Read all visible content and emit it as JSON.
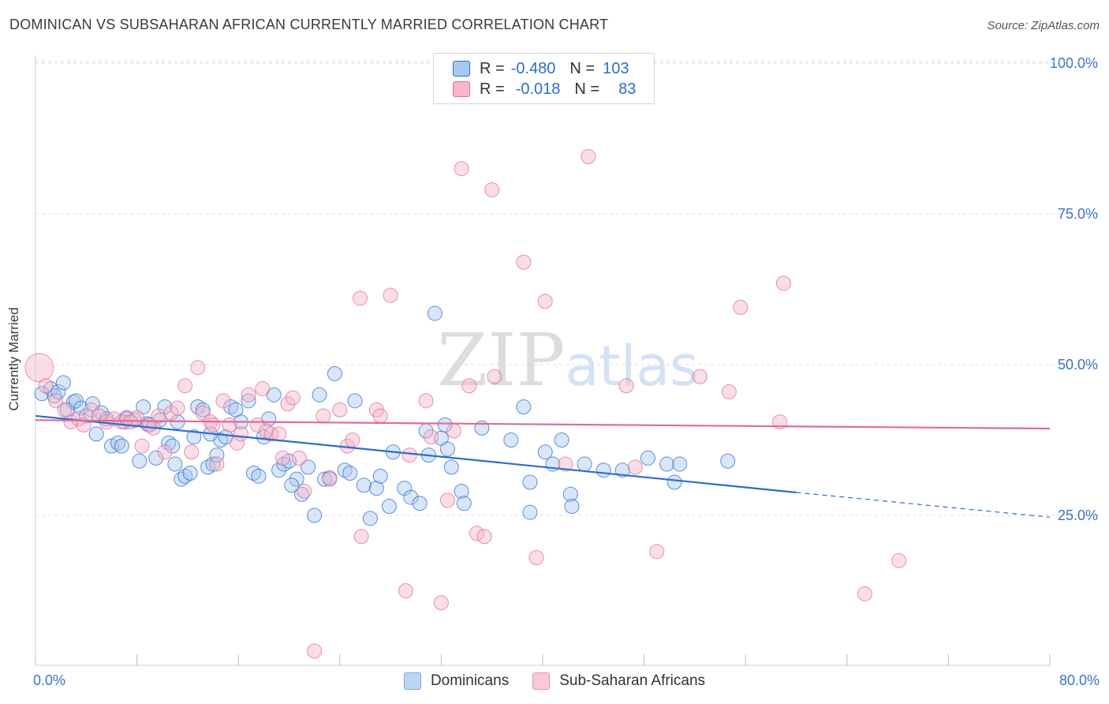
{
  "title": "DOMINICAN VS SUBSAHARAN AFRICAN CURRENTLY MARRIED CORRELATION CHART",
  "source": "Source: ZipAtlas.com",
  "watermark": "ZIPatlas",
  "legend": {
    "rows": [
      {
        "r_label": "R =",
        "r_value": "-0.480",
        "n_label": "N =",
        "n_value": "103"
      },
      {
        "r_label": "R =",
        "r_value": "-0.018",
        "n_label": "N =",
        "n_value": "83"
      }
    ]
  },
  "colors": {
    "blue": "#2d6ccc",
    "blue_fill": "#a9c8f0",
    "pink": "#e36b94",
    "pink_fill": "#f5b6ca",
    "tick_label": "#3b73c9",
    "grid": "#dcdcdc"
  },
  "chart_data": {
    "type": "scatter",
    "title": "DOMINICAN VS SUBSAHARAN AFRICAN CURRENTLY MARRIED CORRELATION CHART",
    "xlabel": "",
    "ylabel": "Currently Married",
    "xlim": [
      0,
      80
    ],
    "ylim": [
      0,
      105
    ],
    "x_tick_labels": [
      "0.0%",
      "80.0%"
    ],
    "y_ticks": [
      25,
      50,
      75,
      100
    ],
    "y_tick_labels": [
      "25.0%",
      "50.0%",
      "75.0%",
      "100.0%"
    ],
    "grid": true,
    "legend_position": "top-center",
    "series": [
      {
        "name": "Dominicans",
        "color": "#2d6ccc",
        "r": -0.48,
        "n": 103,
        "trend": {
          "x0": 0,
          "y0": 41.5,
          "x1": 60,
          "y1": 28.8,
          "dash_to_x": 80,
          "dash_to_y": 24.7
        },
        "points": [
          [
            0.5,
            45.2
          ],
          [
            1.2,
            46.0
          ],
          [
            1.5,
            44.8
          ],
          [
            1.8,
            45.5
          ],
          [
            2.2,
            47.0
          ],
          [
            2.5,
            42.5
          ],
          [
            3.0,
            43.8
          ],
          [
            3.2,
            44.0
          ],
          [
            3.6,
            42.8
          ],
          [
            4.0,
            41.5
          ],
          [
            4.5,
            43.5
          ],
          [
            4.8,
            38.5
          ],
          [
            5.2,
            42.0
          ],
          [
            5.6,
            41.0
          ],
          [
            6.0,
            36.5
          ],
          [
            6.5,
            37.0
          ],
          [
            7.0,
            40.5
          ],
          [
            7.2,
            41.2
          ],
          [
            7.8,
            40.8
          ],
          [
            8.2,
            34.0
          ],
          [
            8.5,
            43.0
          ],
          [
            8.8,
            40.2
          ],
          [
            9.0,
            40.0
          ],
          [
            9.5,
            34.5
          ],
          [
            9.8,
            40.8
          ],
          [
            10.2,
            43.0
          ],
          [
            10.5,
            37.0
          ],
          [
            10.8,
            36.5
          ],
          [
            11.0,
            33.5
          ],
          [
            11.2,
            40.5
          ],
          [
            11.5,
            31.0
          ],
          [
            11.8,
            31.5
          ],
          [
            12.2,
            32.0
          ],
          [
            12.5,
            38.0
          ],
          [
            12.8,
            43.0
          ],
          [
            13.2,
            42.5
          ],
          [
            13.6,
            33.0
          ],
          [
            14.0,
            33.5
          ],
          [
            14.3,
            35.0
          ],
          [
            14.6,
            37.5
          ],
          [
            15.0,
            38.0
          ],
          [
            15.4,
            43.0
          ],
          [
            15.8,
            42.5
          ],
          [
            16.2,
            40.5
          ],
          [
            16.8,
            44.0
          ],
          [
            17.2,
            32.0
          ],
          [
            17.6,
            31.5
          ],
          [
            18.0,
            38.0
          ],
          [
            18.4,
            41.0
          ],
          [
            18.8,
            45.0
          ],
          [
            19.2,
            32.5
          ],
          [
            19.6,
            33.5
          ],
          [
            20.0,
            34.0
          ],
          [
            20.6,
            31.0
          ],
          [
            21.0,
            28.5
          ],
          [
            21.5,
            33.0
          ],
          [
            22.0,
            25.0
          ],
          [
            22.4,
            45.0
          ],
          [
            22.8,
            31.0
          ],
          [
            23.2,
            31.2
          ],
          [
            23.6,
            48.5
          ],
          [
            24.4,
            32.5
          ],
          [
            24.8,
            32.0
          ],
          [
            25.2,
            44.0
          ],
          [
            25.9,
            30.0
          ],
          [
            26.4,
            24.5
          ],
          [
            26.9,
            29.5
          ],
          [
            27.2,
            31.5
          ],
          [
            27.9,
            26.5
          ],
          [
            28.2,
            35.5
          ],
          [
            29.1,
            29.5
          ],
          [
            29.6,
            28.0
          ],
          [
            30.3,
            27.0
          ],
          [
            31.0,
            35.0
          ],
          [
            32.0,
            37.8
          ],
          [
            32.5,
            36.0
          ],
          [
            32.8,
            33.0
          ],
          [
            33.6,
            29.0
          ],
          [
            33.8,
            27.0
          ],
          [
            35.2,
            39.5
          ],
          [
            37.5,
            37.5
          ],
          [
            38.5,
            43.0
          ],
          [
            39.0,
            25.5
          ],
          [
            39.0,
            30.5
          ],
          [
            40.2,
            35.5
          ],
          [
            40.8,
            33.5
          ],
          [
            41.5,
            37.5
          ],
          [
            42.2,
            28.5
          ],
          [
            42.3,
            26.5
          ],
          [
            43.3,
            33.5
          ],
          [
            44.8,
            32.5
          ],
          [
            46.3,
            32.5
          ],
          [
            48.3,
            34.5
          ],
          [
            49.8,
            33.5
          ],
          [
            50.4,
            30.5
          ],
          [
            50.8,
            33.5
          ],
          [
            54.6,
            34.0
          ],
          [
            32.3,
            40.0
          ],
          [
            30.8,
            39.0
          ],
          [
            13.8,
            38.5
          ],
          [
            20.2,
            30.0
          ],
          [
            31.5,
            58.5
          ],
          [
            6.8,
            36.5
          ]
        ]
      },
      {
        "name": "Sub-Saharan Africans",
        "color": "#e36b94",
        "r": -0.018,
        "n": 83,
        "trend": {
          "x0": 0,
          "y0": 40.8,
          "x1": 80,
          "y1": 39.4
        },
        "points": [
          [
            0.3,
            49.5
          ],
          [
            0.8,
            46.5
          ],
          [
            1.6,
            44.0
          ],
          [
            2.3,
            42.5
          ],
          [
            2.8,
            40.5
          ],
          [
            3.4,
            41.0
          ],
          [
            3.8,
            40.0
          ],
          [
            4.4,
            42.5
          ],
          [
            5.0,
            41.5
          ],
          [
            5.6,
            40.5
          ],
          [
            6.2,
            41.0
          ],
          [
            6.8,
            40.5
          ],
          [
            7.2,
            41.0
          ],
          [
            8.0,
            41.2
          ],
          [
            8.4,
            36.5
          ],
          [
            8.9,
            40.0
          ],
          [
            9.3,
            39.5
          ],
          [
            9.7,
            41.5
          ],
          [
            10.2,
            35.5
          ],
          [
            10.7,
            42.0
          ],
          [
            11.2,
            42.8
          ],
          [
            11.8,
            46.5
          ],
          [
            12.3,
            35.5
          ],
          [
            12.8,
            49.5
          ],
          [
            13.2,
            42.0
          ],
          [
            13.8,
            40.5
          ],
          [
            14.3,
            33.5
          ],
          [
            14.8,
            44.0
          ],
          [
            15.3,
            40.0
          ],
          [
            15.9,
            37.0
          ],
          [
            16.2,
            38.5
          ],
          [
            16.8,
            45.0
          ],
          [
            17.5,
            40.0
          ],
          [
            17.9,
            46.0
          ],
          [
            18.2,
            39.0
          ],
          [
            18.6,
            38.5
          ],
          [
            19.2,
            38.5
          ],
          [
            19.5,
            34.5
          ],
          [
            19.9,
            43.5
          ],
          [
            20.3,
            44.5
          ],
          [
            20.8,
            34.5
          ],
          [
            21.2,
            29.0
          ],
          [
            22.0,
            2.5
          ],
          [
            22.7,
            41.5
          ],
          [
            23.2,
            31.0
          ],
          [
            24.0,
            42.5
          ],
          [
            24.6,
            36.5
          ],
          [
            25.0,
            37.5
          ],
          [
            25.6,
            61.0
          ],
          [
            25.7,
            21.5
          ],
          [
            26.9,
            42.5
          ],
          [
            27.2,
            41.5
          ],
          [
            28.0,
            61.5
          ],
          [
            29.2,
            12.5
          ],
          [
            29.5,
            35.0
          ],
          [
            30.8,
            44.0
          ],
          [
            31.2,
            38.0
          ],
          [
            32.0,
            10.5
          ],
          [
            32.5,
            27.5
          ],
          [
            33.0,
            39.0
          ],
          [
            33.6,
            82.5
          ],
          [
            34.2,
            46.5
          ],
          [
            34.8,
            22.0
          ],
          [
            35.4,
            21.5
          ],
          [
            36.0,
            79.0
          ],
          [
            38.5,
            67.0
          ],
          [
            39.5,
            18.0
          ],
          [
            40.2,
            60.5
          ],
          [
            41.8,
            33.5
          ],
          [
            43.6,
            84.5
          ],
          [
            46.6,
            46.5
          ],
          [
            47.3,
            33.0
          ],
          [
            49.0,
            19.0
          ],
          [
            52.4,
            48.0
          ],
          [
            54.7,
            45.5
          ],
          [
            55.6,
            59.5
          ],
          [
            58.7,
            40.5
          ],
          [
            59.0,
            63.5
          ],
          [
            65.4,
            12.0
          ],
          [
            68.1,
            17.5
          ],
          [
            36.2,
            48.0
          ],
          [
            14.0,
            40.0
          ],
          [
            7.5,
            40.5
          ]
        ]
      }
    ]
  },
  "bottom_legend": {
    "items": [
      {
        "label": "Dominicans"
      },
      {
        "label": "Sub-Saharan Africans"
      }
    ]
  }
}
